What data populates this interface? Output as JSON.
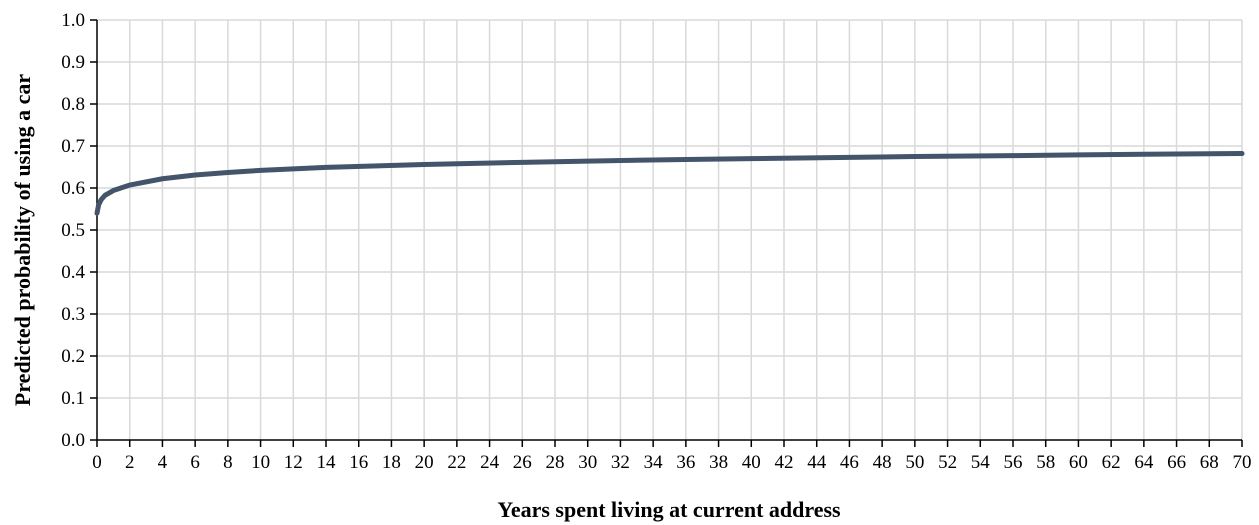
{
  "chart_data": {
    "type": "line",
    "title": "",
    "xlabel": "Years spent living at current address",
    "ylabel": "Predicted probability of using a car",
    "xlim": [
      0,
      70
    ],
    "ylim": [
      0.0,
      1.0
    ],
    "grid": true,
    "x_ticks": [
      "0",
      "2",
      "4",
      "6",
      "8",
      "10",
      "12",
      "14",
      "16",
      "18",
      "20",
      "22",
      "24",
      "26",
      "28",
      "30",
      "32",
      "34",
      "36",
      "38",
      "40",
      "42",
      "44",
      "46",
      "48",
      "50",
      "52",
      "54",
      "56",
      "58",
      "60",
      "62",
      "64",
      "66",
      "68",
      "70"
    ],
    "y_ticks": [
      "0.0",
      "0.1",
      "0.2",
      "0.3",
      "0.4",
      "0.5",
      "0.6",
      "0.7",
      "0.8",
      "0.9",
      "1.0"
    ],
    "series": [
      {
        "color": "#44546a",
        "x": [
          0,
          0.1,
          0.25,
          0.5,
          1,
          2,
          4,
          6,
          8,
          10,
          14,
          20,
          26,
          30,
          36,
          40,
          46,
          50,
          56,
          60,
          66,
          70
        ],
        "y": [
          0.54,
          0.56,
          0.572,
          0.583,
          0.594,
          0.607,
          0.622,
          0.631,
          0.637,
          0.642,
          0.649,
          0.656,
          0.661,
          0.664,
          0.668,
          0.67,
          0.673,
          0.675,
          0.677,
          0.679,
          0.681,
          0.682
        ]
      }
    ]
  }
}
